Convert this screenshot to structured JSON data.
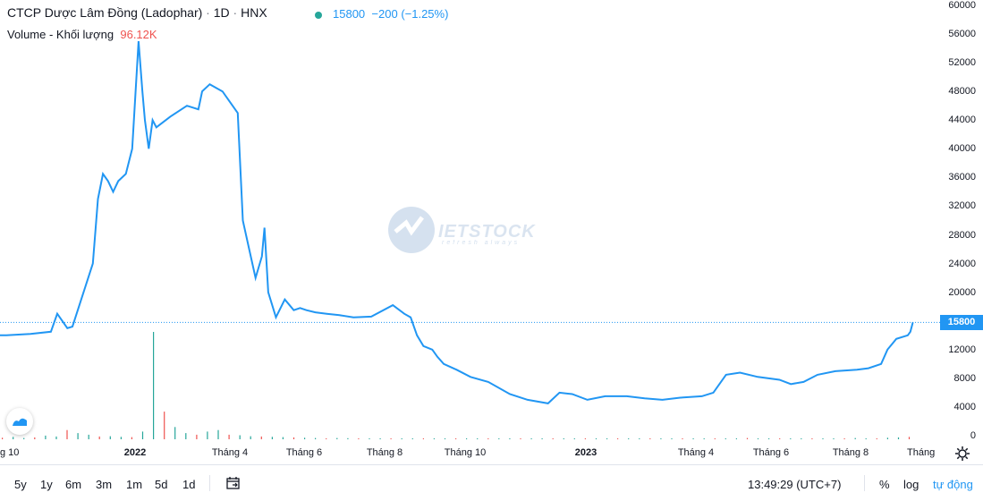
{
  "header": {
    "title": "CTCP Dược Lâm Đồng (Ladophar)",
    "interval": "1D",
    "exchange": "HNX",
    "dot_sep": "·",
    "price": "15800",
    "change": "−200",
    "change_pct": "(−1.25%)",
    "volume_label": "Volume - Khối lượng",
    "volume_value": "96.12K"
  },
  "watermark": {
    "text": "IETSTOCK",
    "sub": "refresh always"
  },
  "price_label": "15800",
  "bottom": {
    "ranges": [
      "5y",
      "1y",
      "6m",
      "3m",
      "1m",
      "5d",
      "1d"
    ],
    "time": "13:49:29 (UTC+7)",
    "pct": "%",
    "log": "log",
    "auto": "tự động"
  },
  "colors": {
    "line": "#2196f3",
    "price_badge": "#2196f3",
    "volume_bar": "#26a69a",
    "volume_bar_down": "#ef5350"
  },
  "icons": [
    "date-range-icon",
    "gear-icon",
    "tradingview-logo-icon"
  ],
  "chart_data": {
    "type": "line",
    "ylim": [
      0,
      60000
    ],
    "yticks": [
      "60000",
      "56000",
      "52000",
      "48000",
      "44000",
      "40000",
      "36000",
      "32000",
      "28000",
      "24000",
      "20000",
      "16000",
      "12000",
      "8000",
      "4000",
      "0"
    ],
    "xtick_labels": [
      {
        "label": "g 10",
        "bold": false
      },
      {
        "label": "2022",
        "bold": true
      },
      {
        "label": "Tháng 4",
        "bold": false
      },
      {
        "label": "Tháng 6",
        "bold": false
      },
      {
        "label": "Tháng 8",
        "bold": false
      },
      {
        "label": "Tháng 10",
        "bold": false
      },
      {
        "label": "2023",
        "bold": true
      },
      {
        "label": "Tháng 4",
        "bold": false
      },
      {
        "label": "Tháng 6",
        "bold": false
      },
      {
        "label": "Tháng 8",
        "bold": false
      },
      {
        "label": "Tháng",
        "bold": false
      }
    ],
    "last_price": 15800,
    "series": [
      {
        "x": [
          "2021-10-01",
          "2021-10-20",
          "2021-11-05",
          "2021-11-10",
          "2021-11-18",
          "2021-11-22",
          "2021-12-08",
          "2021-12-12",
          "2021-12-16",
          "2021-12-20",
          "2021-12-24",
          "2021-12-28",
          "2022-01-03",
          "2022-01-08",
          "2022-01-12",
          "2022-01-13",
          "2022-01-16",
          "2022-01-18",
          "2022-01-21",
          "2022-01-24",
          "2022-01-27",
          "2022-02-07",
          "2022-02-20",
          "2022-03-01",
          "2022-03-04",
          "2022-03-10",
          "2022-03-20",
          "2022-03-24",
          "2022-04-01",
          "2022-04-05",
          "2022-04-10",
          "2022-04-15",
          "2022-04-20",
          "2022-04-22",
          "2022-04-25",
          "2022-05-01",
          "2022-05-08",
          "2022-05-15",
          "2022-05-20",
          "2022-05-25",
          "2022-06-01",
          "2022-06-10",
          "2022-06-20",
          "2022-07-01",
          "2022-07-15",
          "2022-08-01",
          "2022-08-10",
          "2022-08-15",
          "2022-08-20",
          "2022-08-25",
          "2022-09-01",
          "2022-09-05",
          "2022-09-10",
          "2022-09-20",
          "2022-10-01",
          "2022-10-15",
          "2022-11-01",
          "2022-11-15",
          "2022-12-01",
          "2022-12-10",
          "2022-12-20",
          "2023-01-01",
          "2023-01-15",
          "2023-02-01",
          "2023-02-15",
          "2023-03-01",
          "2023-03-15",
          "2023-04-01",
          "2023-04-10",
          "2023-04-20",
          "2023-05-01",
          "2023-05-15",
          "2023-06-01",
          "2023-06-10",
          "2023-06-20",
          "2023-07-01",
          "2023-07-15",
          "2023-08-01",
          "2023-08-10",
          "2023-08-20",
          "2023-08-25",
          "2023-09-01",
          "2023-09-10",
          "2023-09-12",
          "2023-09-14"
        ],
        "y": [
          14000,
          14200,
          14500,
          17000,
          15000,
          15200,
          24000,
          33000,
          36500,
          35500,
          34000,
          35500,
          36500,
          40000,
          52000,
          55000,
          48000,
          44000,
          40000,
          44000,
          43000,
          44500,
          46000,
          45500,
          48000,
          49000,
          48000,
          47000,
          45000,
          30000,
          26000,
          22000,
          25000,
          29000,
          20000,
          16500,
          19000,
          17500,
          17800,
          17500,
          17200,
          17000,
          16800,
          16500,
          16600,
          18200,
          17000,
          16500,
          14000,
          12500,
          12000,
          11000,
          10000,
          9200,
          8200,
          7500,
          5800,
          5000,
          4500,
          6000,
          5800,
          5000,
          5500,
          5500,
          5200,
          5000,
          5300,
          5500,
          6000,
          8500,
          8800,
          8200,
          7800,
          7200,
          7500,
          8500,
          9000,
          9200,
          9400,
          10000,
          12000,
          13500,
          14000,
          14500,
          15800
        ]
      }
    ],
    "volume_series": [
      50,
      80,
      40,
      60,
      120,
      90,
      300,
      200,
      150,
      90,
      100,
      80,
      70,
      250,
      3500,
      900,
      400,
      200,
      150,
      250,
      300,
      150,
      130,
      100,
      90,
      80,
      70,
      60,
      50,
      40,
      30,
      40,
      35,
      30,
      25,
      20,
      18,
      20,
      15,
      18,
      10,
      15,
      12,
      20,
      30,
      25,
      20,
      15,
      12,
      10,
      8,
      10,
      12,
      10,
      8,
      6,
      5,
      8,
      6,
      5,
      4,
      6,
      5,
      8,
      10,
      12,
      15,
      20,
      25,
      40,
      30,
      20,
      15,
      12,
      20,
      10,
      15,
      18,
      25,
      40,
      30,
      20,
      50,
      60,
      80
    ]
  }
}
